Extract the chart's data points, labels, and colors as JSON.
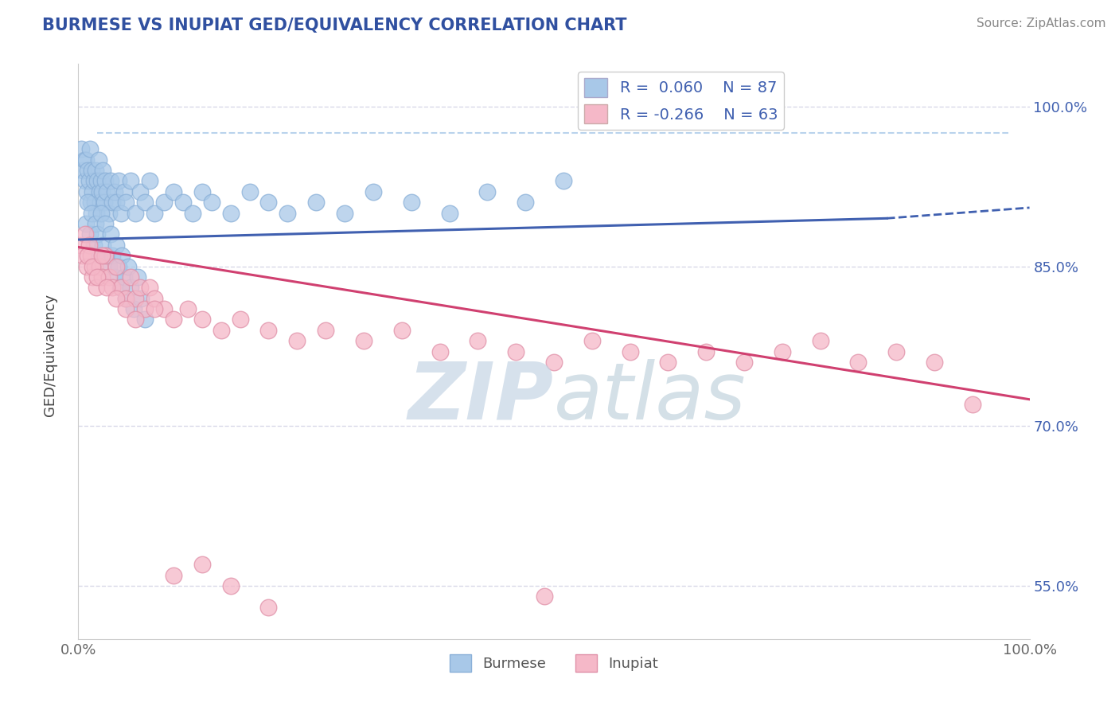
{
  "title": "BURMESE VS INUPIAT GED/EQUIVALENCY CORRELATION CHART",
  "source": "Source: ZipAtlas.com",
  "ylabel": "GED/Equivalency",
  "legend_burmese": "Burmese",
  "legend_inupiat": "Inupiat",
  "r_burmese": 0.06,
  "n_burmese": 87,
  "r_inupiat": -0.266,
  "n_inupiat": 63,
  "blue_scatter_color": "#a8c8e8",
  "pink_scatter_color": "#f5b8c8",
  "blue_line_color": "#4060b0",
  "pink_line_color": "#d04070",
  "title_color": "#3050a0",
  "axis_label_color": "#4060b0",
  "tick_color": "#4060b0",
  "grid_color": "#d8d8e8",
  "xmin": 0.0,
  "xmax": 1.0,
  "ymin": 0.5,
  "ymax": 1.04,
  "yticks": [
    0.55,
    0.7,
    0.85,
    1.0
  ],
  "ytick_labels": [
    "55.0%",
    "70.0%",
    "85.0%",
    "100.0%"
  ],
  "burmese_x": [
    0.003,
    0.005,
    0.006,
    0.007,
    0.008,
    0.009,
    0.01,
    0.011,
    0.012,
    0.013,
    0.014,
    0.015,
    0.016,
    0.017,
    0.018,
    0.019,
    0.02,
    0.021,
    0.022,
    0.023,
    0.024,
    0.025,
    0.026,
    0.027,
    0.028,
    0.03,
    0.032,
    0.034,
    0.036,
    0.038,
    0.04,
    0.042,
    0.045,
    0.048,
    0.05,
    0.055,
    0.06,
    0.065,
    0.07,
    0.075,
    0.08,
    0.09,
    0.1,
    0.11,
    0.12,
    0.13,
    0.14,
    0.16,
    0.18,
    0.2,
    0.22,
    0.25,
    0.28,
    0.31,
    0.35,
    0.39,
    0.43,
    0.47,
    0.51,
    0.008,
    0.01,
    0.012,
    0.014,
    0.016,
    0.018,
    0.02,
    0.022,
    0.024,
    0.026,
    0.028,
    0.03,
    0.032,
    0.034,
    0.036,
    0.038,
    0.04,
    0.042,
    0.044,
    0.046,
    0.048,
    0.05,
    0.052,
    0.055,
    0.058,
    0.062,
    0.066,
    0.07
  ],
  "burmese_y": [
    0.96,
    0.94,
    0.95,
    0.93,
    0.95,
    0.92,
    0.94,
    0.93,
    0.96,
    0.91,
    0.94,
    0.92,
    0.93,
    0.91,
    0.94,
    0.9,
    0.93,
    0.95,
    0.92,
    0.91,
    0.93,
    0.92,
    0.94,
    0.91,
    0.93,
    0.92,
    0.9,
    0.93,
    0.91,
    0.92,
    0.91,
    0.93,
    0.9,
    0.92,
    0.91,
    0.93,
    0.9,
    0.92,
    0.91,
    0.93,
    0.9,
    0.91,
    0.92,
    0.91,
    0.9,
    0.92,
    0.91,
    0.9,
    0.92,
    0.91,
    0.9,
    0.91,
    0.9,
    0.92,
    0.91,
    0.9,
    0.92,
    0.91,
    0.93,
    0.89,
    0.91,
    0.88,
    0.9,
    0.87,
    0.89,
    0.88,
    0.86,
    0.9,
    0.87,
    0.89,
    0.86,
    0.85,
    0.88,
    0.86,
    0.84,
    0.87,
    0.85,
    0.83,
    0.86,
    0.84,
    0.82,
    0.85,
    0.83,
    0.81,
    0.84,
    0.82,
    0.8
  ],
  "inupiat_x": [
    0.003,
    0.005,
    0.007,
    0.009,
    0.011,
    0.013,
    0.015,
    0.017,
    0.019,
    0.022,
    0.025,
    0.028,
    0.032,
    0.036,
    0.04,
    0.045,
    0.05,
    0.055,
    0.06,
    0.065,
    0.07,
    0.075,
    0.08,
    0.09,
    0.1,
    0.115,
    0.13,
    0.15,
    0.17,
    0.2,
    0.23,
    0.26,
    0.3,
    0.34,
    0.38,
    0.42,
    0.46,
    0.5,
    0.54,
    0.58,
    0.62,
    0.66,
    0.7,
    0.74,
    0.78,
    0.82,
    0.86,
    0.9,
    0.94,
    0.01,
    0.015,
    0.02,
    0.025,
    0.03,
    0.04,
    0.05,
    0.06,
    0.08,
    0.1,
    0.13,
    0.16,
    0.2,
    0.49
  ],
  "inupiat_y": [
    0.87,
    0.86,
    0.88,
    0.85,
    0.87,
    0.86,
    0.84,
    0.85,
    0.83,
    0.85,
    0.84,
    0.86,
    0.84,
    0.83,
    0.85,
    0.83,
    0.82,
    0.84,
    0.82,
    0.83,
    0.81,
    0.83,
    0.82,
    0.81,
    0.8,
    0.81,
    0.8,
    0.79,
    0.8,
    0.79,
    0.78,
    0.79,
    0.78,
    0.79,
    0.77,
    0.78,
    0.77,
    0.76,
    0.78,
    0.77,
    0.76,
    0.77,
    0.76,
    0.77,
    0.78,
    0.76,
    0.77,
    0.76,
    0.72,
    0.86,
    0.85,
    0.84,
    0.86,
    0.83,
    0.82,
    0.81,
    0.8,
    0.81,
    0.56,
    0.57,
    0.55,
    0.53,
    0.54
  ],
  "watermark_zip": "ZIP",
  "watermark_atlas": "atlas",
  "watermark_color_zip": "#c5d5e5",
  "watermark_color_atlas": "#b0c8d8"
}
